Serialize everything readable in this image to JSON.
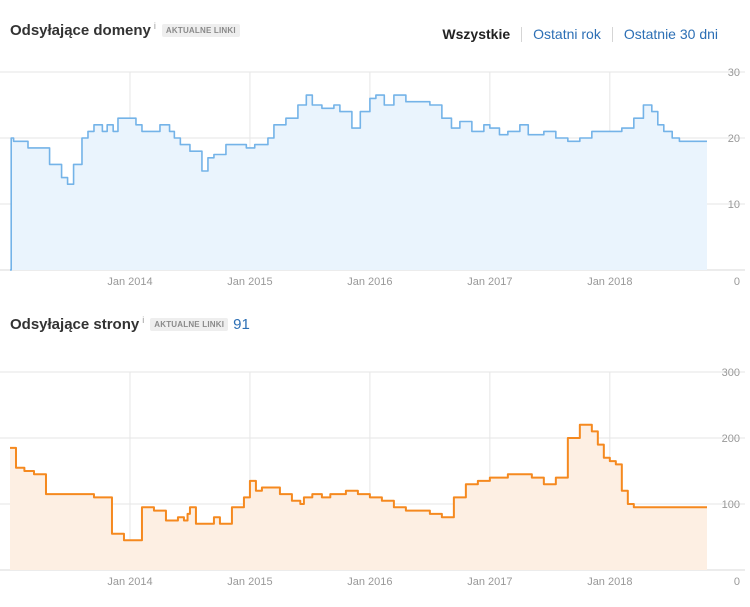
{
  "range_tabs": [
    "Wszystkie",
    "Ostatni rok",
    "Ostatnie 30 dni"
  ],
  "colors": {
    "domains_line": "#74b3e8",
    "domains_fill": "#eaf4fd",
    "pages_line": "#f5891f",
    "pages_fill": "#fdefe3",
    "grid": "#e6e6e6",
    "link": "#2c6fb5"
  },
  "chart_data": [
    {
      "type": "area",
      "title": "Odsyłające domeny",
      "badge": "AKTUALNE LINKI",
      "info_icon": "i",
      "x_ticks": [
        "Jan 2014",
        "Jan 2015",
        "Jan 2016",
        "Jan 2017",
        "Jan 2018"
      ],
      "x_tick_values": [
        2014,
        2015,
        2016,
        2017,
        2018
      ],
      "y_ticks": [
        "30",
        "20",
        "10",
        "0"
      ],
      "y_tick_values": [
        30,
        20,
        10,
        0
      ],
      "xlim": [
        2013.0,
        2018.81
      ],
      "ylim": [
        0,
        30
      ],
      "grid": true,
      "y_axis_side": "right",
      "x": [
        2013.0,
        2013.01,
        2013.03,
        2013.15,
        2013.28,
        2013.33,
        2013.43,
        2013.48,
        2013.53,
        2013.6,
        2013.65,
        2013.7,
        2013.77,
        2013.81,
        2013.86,
        2013.9,
        2014.0,
        2014.05,
        2014.1,
        2014.2,
        2014.25,
        2014.33,
        2014.37,
        2014.42,
        2014.5,
        2014.6,
        2014.65,
        2014.7,
        2014.7,
        2014.77,
        2014.8,
        2014.9,
        2014.97,
        2015.04,
        2015.15,
        2015.2,
        2015.3,
        2015.4,
        2015.47,
        2015.52,
        2015.6,
        2015.7,
        2015.75,
        2015.85,
        2015.92,
        2016.0,
        2016.05,
        2016.12,
        2016.2,
        2016.3,
        2016.4,
        2016.5,
        2016.6,
        2016.68,
        2016.75,
        2016.85,
        2016.95,
        2017.0,
        2017.08,
        2017.15,
        2017.25,
        2017.32,
        2017.45,
        2017.55,
        2017.65,
        2017.75,
        2017.85,
        2018.0,
        2018.1,
        2018.2,
        2018.28,
        2018.35,
        2018.4,
        2018.45,
        2018.52,
        2018.58,
        2018.65,
        2018.81
      ],
      "series": [
        {
          "values": [
            0,
            20,
            19.5,
            18.5,
            18.5,
            16,
            14,
            13,
            16,
            20,
            21,
            22,
            21,
            22,
            21,
            23,
            23,
            22,
            21,
            21,
            22,
            21,
            20,
            19,
            18,
            15,
            17,
            17.5,
            17.5,
            17.5,
            19,
            19,
            18.5,
            19,
            20,
            22,
            23,
            25,
            26.5,
            25,
            24.5,
            25,
            24,
            21.5,
            24,
            26,
            26.5,
            25,
            26.5,
            25.5,
            25.5,
            25,
            23,
            21.5,
            22.5,
            21,
            22,
            21.5,
            20.5,
            21,
            22,
            20.5,
            21,
            20,
            19.5,
            20,
            21,
            21,
            21.5,
            23,
            25,
            24,
            22,
            21,
            20,
            19.5,
            19.5,
            19.5
          ]
        }
      ]
    },
    {
      "type": "area",
      "title": "Odsyłające strony",
      "badge": "AKTUALNE LINKI",
      "info_icon": "i",
      "count": "91",
      "x_ticks": [
        "Jan 2014",
        "Jan 2015",
        "Jan 2016",
        "Jan 2017",
        "Jan 2018"
      ],
      "x_tick_values": [
        2014,
        2015,
        2016,
        2017,
        2018
      ],
      "y_ticks": [
        "300",
        "200",
        "100",
        "0"
      ],
      "y_tick_values": [
        300,
        200,
        100,
        0
      ],
      "xlim": [
        2013.0,
        2018.81
      ],
      "ylim": [
        0,
        300
      ],
      "grid": true,
      "y_axis_side": "right",
      "x": [
        2013.0,
        2013.05,
        2013.12,
        2013.2,
        2013.3,
        2013.45,
        2013.6,
        2013.7,
        2013.85,
        2013.95,
        2014.05,
        2014.1,
        2014.15,
        2014.2,
        2014.3,
        2014.4,
        2014.45,
        2014.48,
        2014.5,
        2014.55,
        2014.65,
        2014.7,
        2014.75,
        2014.85,
        2014.95,
        2015.0,
        2015.05,
        2015.1,
        2015.15,
        2015.25,
        2015.35,
        2015.38,
        2015.42,
        2015.45,
        2015.48,
        2015.52,
        2015.6,
        2015.67,
        2015.72,
        2015.8,
        2015.9,
        2016.0,
        2016.1,
        2016.2,
        2016.3,
        2016.4,
        2016.5,
        2016.6,
        2016.7,
        2016.8,
        2016.9,
        2017.0,
        2017.05,
        2017.15,
        2017.25,
        2017.35,
        2017.45,
        2017.55,
        2017.65,
        2017.75,
        2017.85,
        2017.9,
        2017.95,
        2018.0,
        2018.05,
        2018.1,
        2018.15,
        2018.2,
        2018.25,
        2018.32,
        2018.37,
        2018.42,
        2018.5,
        2018.55,
        2018.6,
        2018.65,
        2018.7,
        2018.81
      ],
      "series": [
        {
          "values": [
            185,
            155,
            150,
            145,
            115,
            115,
            115,
            110,
            55,
            45,
            45,
            95,
            95,
            90,
            75,
            80,
            75,
            85,
            95,
            70,
            70,
            80,
            70,
            95,
            110,
            135,
            120,
            125,
            125,
            115,
            105,
            105,
            100,
            110,
            110,
            115,
            110,
            115,
            115,
            120,
            115,
            110,
            105,
            95,
            90,
            90,
            85,
            80,
            110,
            130,
            135,
            140,
            140,
            145,
            145,
            140,
            130,
            140,
            200,
            220,
            210,
            190,
            170,
            165,
            160,
            120,
            100,
            95,
            95,
            95,
            95,
            95,
            95,
            95,
            95,
            95,
            95,
            95
          ]
        }
      ]
    }
  ]
}
